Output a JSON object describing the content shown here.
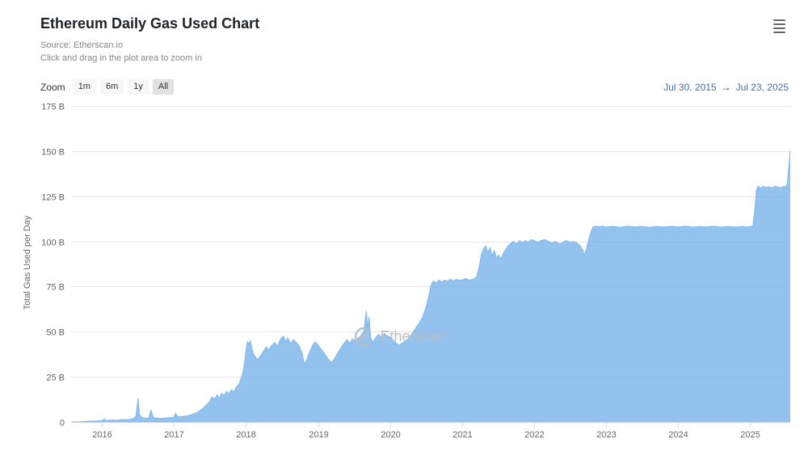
{
  "header": {
    "title": "Ethereum Daily Gas Used Chart",
    "source": "Source: Etherscan.io",
    "hint": "Click and drag in the plot area to zoom in"
  },
  "toolbar": {
    "zoom_label": "Zoom",
    "buttons": [
      {
        "label": "1m",
        "selected": false
      },
      {
        "label": "6m",
        "selected": false
      },
      {
        "label": "1y",
        "selected": false
      },
      {
        "label": "All",
        "selected": true
      }
    ],
    "range": {
      "from": "Jul 30, 2015",
      "arrow": "→",
      "to": "Jul 23, 2025"
    }
  },
  "watermark": {
    "text": "Etherscan"
  },
  "colors": {
    "series": "#7cb5ec",
    "grid": "#e6e6e6",
    "axis_line": "#ccd6eb",
    "axis_text": "#666666",
    "range_text": "#4470b5",
    "button_bg": "#f7f7f7",
    "button_selected_bg": "#e1e1e1",
    "watermark": "#b9bdc3"
  },
  "chart_data": {
    "type": "area",
    "title": "Ethereum Daily Gas Used Chart",
    "xlabel": "",
    "ylabel": "Total Gas Used per Day",
    "xlim": [
      2015.57,
      2025.56
    ],
    "ylim": [
      0,
      175
    ],
    "grid": true,
    "legend": "none",
    "x_ticks": [
      2016,
      2017,
      2018,
      2019,
      2020,
      2021,
      2022,
      2023,
      2024,
      2025
    ],
    "y_ticks": [
      {
        "v": 0,
        "label": "0"
      },
      {
        "v": 25,
        "label": "25 B"
      },
      {
        "v": 50,
        "label": "50 B"
      },
      {
        "v": 75,
        "label": "75 B"
      },
      {
        "v": 100,
        "label": "100 B"
      },
      {
        "v": 125,
        "label": "125 B"
      },
      {
        "v": 150,
        "label": "150 B"
      },
      {
        "v": 175,
        "label": "175 B"
      }
    ],
    "series": [
      {
        "name": "Total Gas Used per Day (billions)",
        "color": "#7cb5ec",
        "points": [
          [
            2015.58,
            0.05
          ],
          [
            2015.65,
            0.1
          ],
          [
            2015.72,
            0.2
          ],
          [
            2015.8,
            0.4
          ],
          [
            2015.88,
            0.5
          ],
          [
            2015.95,
            0.7
          ],
          [
            2016.0,
            0.8
          ],
          [
            2016.03,
            1.6
          ],
          [
            2016.06,
            0.9
          ],
          [
            2016.1,
            1.0
          ],
          [
            2016.15,
            1.1
          ],
          [
            2016.2,
            1.0
          ],
          [
            2016.25,
            1.2
          ],
          [
            2016.3,
            1.3
          ],
          [
            2016.35,
            1.2
          ],
          [
            2016.4,
            1.5
          ],
          [
            2016.44,
            2.2
          ],
          [
            2016.47,
            3.0
          ],
          [
            2016.5,
            13.2
          ],
          [
            2016.52,
            4.0
          ],
          [
            2016.55,
            2.5
          ],
          [
            2016.6,
            2.2
          ],
          [
            2016.65,
            2.0
          ],
          [
            2016.68,
            6.5
          ],
          [
            2016.71,
            2.6
          ],
          [
            2016.75,
            2.2
          ],
          [
            2016.8,
            2.0
          ],
          [
            2016.85,
            2.1
          ],
          [
            2016.9,
            2.3
          ],
          [
            2016.95,
            2.4
          ],
          [
            2017.0,
            2.6
          ],
          [
            2017.02,
            4.8
          ],
          [
            2017.05,
            2.8
          ],
          [
            2017.1,
            3.0
          ],
          [
            2017.15,
            3.2
          ],
          [
            2017.2,
            3.6
          ],
          [
            2017.25,
            4.2
          ],
          [
            2017.3,
            5.0
          ],
          [
            2017.35,
            6.0
          ],
          [
            2017.4,
            7.5
          ],
          [
            2017.45,
            9.5
          ],
          [
            2017.5,
            11.5
          ],
          [
            2017.53,
            14.0
          ],
          [
            2017.56,
            12.5
          ],
          [
            2017.6,
            15.0
          ],
          [
            2017.63,
            13.0
          ],
          [
            2017.66,
            16.0
          ],
          [
            2017.7,
            14.5
          ],
          [
            2017.73,
            17.0
          ],
          [
            2017.76,
            15.5
          ],
          [
            2017.8,
            18.0
          ],
          [
            2017.83,
            16.5
          ],
          [
            2017.86,
            19.0
          ],
          [
            2017.9,
            21.0
          ],
          [
            2017.93,
            24.0
          ],
          [
            2017.96,
            28.0
          ],
          [
            2017.98,
            33.0
          ],
          [
            2018.0,
            40.0
          ],
          [
            2018.02,
            44.5
          ],
          [
            2018.04,
            43.0
          ],
          [
            2018.06,
            45.0
          ],
          [
            2018.08,
            41.0
          ],
          [
            2018.1,
            38.0
          ],
          [
            2018.13,
            36.0
          ],
          [
            2018.16,
            34.5
          ],
          [
            2018.2,
            36.5
          ],
          [
            2018.24,
            39.0
          ],
          [
            2018.28,
            41.5
          ],
          [
            2018.32,
            40.0
          ],
          [
            2018.36,
            42.5
          ],
          [
            2018.4,
            44.0
          ],
          [
            2018.44,
            42.0
          ],
          [
            2018.48,
            46.0
          ],
          [
            2018.52,
            47.5
          ],
          [
            2018.55,
            44.5
          ],
          [
            2018.58,
            46.5
          ],
          [
            2018.62,
            43.5
          ],
          [
            2018.66,
            45.5
          ],
          [
            2018.7,
            44.0
          ],
          [
            2018.74,
            42.0
          ],
          [
            2018.78,
            38.0
          ],
          [
            2018.81,
            32.0
          ],
          [
            2018.84,
            34.0
          ],
          [
            2018.88,
            38.5
          ],
          [
            2018.92,
            42.0
          ],
          [
            2018.96,
            44.5
          ],
          [
            2019.0,
            42.5
          ],
          [
            2019.04,
            40.5
          ],
          [
            2019.08,
            38.5
          ],
          [
            2019.12,
            36.0
          ],
          [
            2019.16,
            34.0
          ],
          [
            2019.2,
            33.0
          ],
          [
            2019.25,
            36.5
          ],
          [
            2019.3,
            40.0
          ],
          [
            2019.35,
            43.0
          ],
          [
            2019.4,
            45.5
          ],
          [
            2019.44,
            43.5
          ],
          [
            2019.48,
            46.0
          ],
          [
            2019.52,
            44.5
          ],
          [
            2019.56,
            46.5
          ],
          [
            2019.6,
            48.0
          ],
          [
            2019.64,
            50.5
          ],
          [
            2019.67,
            61.5
          ],
          [
            2019.69,
            52.0
          ],
          [
            2019.71,
            58.0
          ],
          [
            2019.73,
            47.0
          ],
          [
            2019.76,
            44.0
          ],
          [
            2019.8,
            46.5
          ],
          [
            2019.84,
            48.5
          ],
          [
            2019.88,
            47.0
          ],
          [
            2019.92,
            49.0
          ],
          [
            2019.96,
            47.5
          ],
          [
            2020.0,
            47.0
          ],
          [
            2020.04,
            45.5
          ],
          [
            2020.08,
            44.0
          ],
          [
            2020.12,
            42.5
          ],
          [
            2020.16,
            43.5
          ],
          [
            2020.2,
            44.5
          ],
          [
            2020.25,
            46.0
          ],
          [
            2020.3,
            48.5
          ],
          [
            2020.35,
            51.5
          ],
          [
            2020.4,
            54.5
          ],
          [
            2020.45,
            58.0
          ],
          [
            2020.48,
            61.0
          ],
          [
            2020.51,
            65.0
          ],
          [
            2020.54,
            70.0
          ],
          [
            2020.57,
            75.5
          ],
          [
            2020.6,
            78.0
          ],
          [
            2020.64,
            77.0
          ],
          [
            2020.68,
            78.5
          ],
          [
            2020.72,
            77.5
          ],
          [
            2020.76,
            78.5
          ],
          [
            2020.8,
            78.0
          ],
          [
            2020.84,
            79.0
          ],
          [
            2020.88,
            78.0
          ],
          [
            2020.92,
            79.0
          ],
          [
            2020.96,
            78.5
          ],
          [
            2021.0,
            78.5
          ],
          [
            2021.05,
            79.5
          ],
          [
            2021.1,
            78.5
          ],
          [
            2021.15,
            79.0
          ],
          [
            2021.2,
            80.0
          ],
          [
            2021.24,
            86.0
          ],
          [
            2021.27,
            93.0
          ],
          [
            2021.3,
            96.0
          ],
          [
            2021.33,
            97.5
          ],
          [
            2021.36,
            93.5
          ],
          [
            2021.39,
            96.5
          ],
          [
            2021.42,
            92.0
          ],
          [
            2021.45,
            95.0
          ],
          [
            2021.48,
            90.5
          ],
          [
            2021.51,
            92.5
          ],
          [
            2021.54,
            90.0
          ],
          [
            2021.57,
            93.0
          ],
          [
            2021.6,
            95.0
          ],
          [
            2021.64,
            97.5
          ],
          [
            2021.68,
            99.0
          ],
          [
            2021.72,
            100.0
          ],
          [
            2021.76,
            98.5
          ],
          [
            2021.8,
            100.5
          ],
          [
            2021.84,
            99.0
          ],
          [
            2021.88,
            100.5
          ],
          [
            2021.92,
            99.5
          ],
          [
            2021.96,
            101.0
          ],
          [
            2022.0,
            100.5
          ],
          [
            2022.05,
            99.5
          ],
          [
            2022.1,
            100.5
          ],
          [
            2022.15,
            101.0
          ],
          [
            2022.2,
            100.0
          ],
          [
            2022.25,
            99.0
          ],
          [
            2022.3,
            100.0
          ],
          [
            2022.35,
            98.5
          ],
          [
            2022.4,
            99.5
          ],
          [
            2022.45,
            100.5
          ],
          [
            2022.5,
            99.5
          ],
          [
            2022.55,
            100.0
          ],
          [
            2022.6,
            99.0
          ],
          [
            2022.64,
            97.5
          ],
          [
            2022.68,
            95.0
          ],
          [
            2022.7,
            92.5
          ],
          [
            2022.73,
            96.0
          ],
          [
            2022.76,
            101.0
          ],
          [
            2022.79,
            105.0
          ],
          [
            2022.82,
            108.0
          ],
          [
            2022.86,
            108.5
          ],
          [
            2022.9,
            108.0
          ],
          [
            2022.95,
            108.5
          ],
          [
            2023.0,
            108.0
          ],
          [
            2023.1,
            108.3
          ],
          [
            2023.2,
            107.8
          ],
          [
            2023.3,
            108.4
          ],
          [
            2023.4,
            108.0
          ],
          [
            2023.5,
            108.3
          ],
          [
            2023.6,
            107.8
          ],
          [
            2023.7,
            108.2
          ],
          [
            2023.8,
            108.0
          ],
          [
            2023.9,
            108.3
          ],
          [
            2024.0,
            108.0
          ],
          [
            2024.1,
            108.4
          ],
          [
            2024.2,
            107.9
          ],
          [
            2024.3,
            108.2
          ],
          [
            2024.4,
            108.0
          ],
          [
            2024.5,
            108.4
          ],
          [
            2024.6,
            107.9
          ],
          [
            2024.7,
            108.2
          ],
          [
            2024.8,
            108.0
          ],
          [
            2024.9,
            108.3
          ],
          [
            2024.95,
            108.0
          ],
          [
            2025.0,
            108.2
          ],
          [
            2025.04,
            108.5
          ],
          [
            2025.07,
            118.0
          ],
          [
            2025.09,
            128.0
          ],
          [
            2025.11,
            130.5
          ],
          [
            2025.15,
            129.5
          ],
          [
            2025.19,
            130.5
          ],
          [
            2025.23,
            129.8
          ],
          [
            2025.27,
            130.3
          ],
          [
            2025.31,
            129.5
          ],
          [
            2025.35,
            130.5
          ],
          [
            2025.39,
            130.0
          ],
          [
            2025.43,
            129.6
          ],
          [
            2025.47,
            130.4
          ],
          [
            2025.5,
            130.0
          ],
          [
            2025.52,
            132.0
          ],
          [
            2025.54,
            141.0
          ],
          [
            2025.56,
            150.0
          ]
        ]
      }
    ]
  }
}
